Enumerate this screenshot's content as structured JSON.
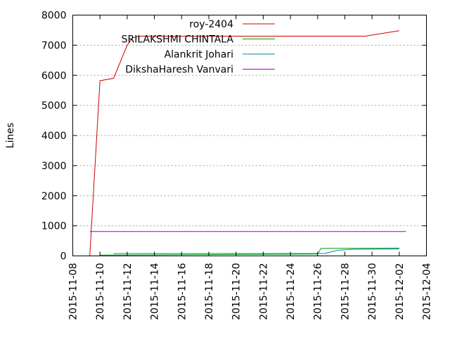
{
  "chart_data": {
    "type": "line",
    "ylabel": "Lines",
    "xlabel": "",
    "title": "",
    "grid": true,
    "legend_position": "top-right",
    "xlim": [
      "2015-11-08",
      "2015-12-04"
    ],
    "ylim": [
      0,
      8000
    ],
    "x_ticks": [
      "2015-11-08",
      "2015-11-10",
      "2015-11-12",
      "2015-11-14",
      "2015-11-16",
      "2015-11-18",
      "2015-11-20",
      "2015-11-22",
      "2015-11-24",
      "2015-11-26",
      "2015-11-28",
      "2015-11-30",
      "2015-12-02",
      "2015-12-04"
    ],
    "y_ticks": [
      0,
      1000,
      2000,
      3000,
      4000,
      5000,
      6000,
      7000,
      8000
    ],
    "series": [
      {
        "name": "roy-2404",
        "color": "#cc0000",
        "points": [
          [
            "2015-11-09 06:00",
            0
          ],
          [
            "2015-11-10 00:00",
            5820
          ],
          [
            "2015-11-11 00:00",
            5900
          ],
          [
            "2015-11-12 00:00",
            7000
          ],
          [
            "2015-11-12 10:00",
            7250
          ],
          [
            "2015-11-13 00:00",
            7300
          ],
          [
            "2015-11-29 12:00",
            7300
          ],
          [
            "2015-12-02 00:00",
            7480
          ]
        ]
      },
      {
        "name": "SRILAKSHMI CHINTALA",
        "color": "#00a000",
        "points": [
          [
            "2015-11-10 00:00",
            30
          ],
          [
            "2015-11-26 00:00",
            60
          ],
          [
            "2015-11-26 06:00",
            250
          ],
          [
            "2015-12-02 00:00",
            260
          ]
        ]
      },
      {
        "name": "Alankrit Johari",
        "color": "#0080c0",
        "points": [
          [
            "2015-11-11 00:00",
            80
          ],
          [
            "2015-11-26 12:00",
            80
          ],
          [
            "2015-11-27 12:00",
            190
          ],
          [
            "2015-11-28 12:00",
            220
          ],
          [
            "2015-12-02 00:00",
            230
          ]
        ]
      },
      {
        "name": "DikshaHaresh Vanvari",
        "color": "#a000c0",
        "points": [
          [
            "2015-11-09 06:00",
            810
          ],
          [
            "2015-12-02 12:00",
            810
          ]
        ]
      }
    ]
  }
}
